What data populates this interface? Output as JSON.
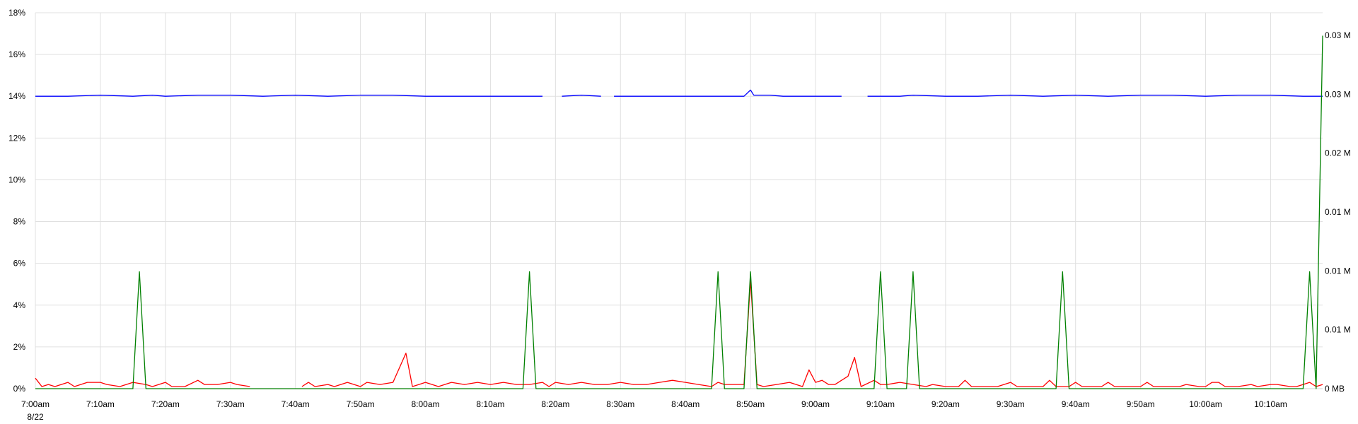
{
  "chart_data": {
    "type": "line",
    "title": "",
    "xlabel": "",
    "ylabel": "",
    "date_label": "8/22",
    "grid": true,
    "legend": "none",
    "x_start": "7:00am",
    "x_end": "10:18am",
    "x_ticks": [
      "7:00am",
      "7:10am",
      "7:20am",
      "7:30am",
      "7:40am",
      "7:50am",
      "8:00am",
      "8:10am",
      "8:20am",
      "8:30am",
      "8:40am",
      "8:50am",
      "9:00am",
      "9:10am",
      "9:20am",
      "9:30am",
      "9:40am",
      "9:50am",
      "10:00am",
      "10:10am"
    ],
    "y_left": {
      "ticks": [
        "0%",
        "2%",
        "4%",
        "6%",
        "8%",
        "10%",
        "12%",
        "14%",
        "16%",
        "18%"
      ],
      "ylim": [
        0,
        18
      ]
    },
    "y_right": {
      "ticks": [
        "0 MB",
        "0.01 M",
        "0.01 M",
        "0.01 M",
        "0.02 M",
        "0.03 M",
        "0.03 M"
      ]
    },
    "series": [
      {
        "color": "#0000ff",
        "axis": "left",
        "points": [
          [
            "7:00am",
            14.0
          ],
          [
            "7:05am",
            14.0
          ],
          [
            "7:10am",
            14.05
          ],
          [
            "7:15am",
            14.0
          ],
          [
            "7:18am",
            14.05
          ],
          [
            "7:20am",
            14.0
          ],
          [
            "7:25am",
            14.05
          ],
          [
            "7:30am",
            14.05
          ],
          [
            "7:35am",
            14.0
          ],
          [
            "7:40am",
            14.05
          ],
          [
            "7:45am",
            14.0
          ],
          [
            "7:50am",
            14.05
          ],
          [
            "7:55am",
            14.05
          ],
          [
            "8:00am",
            14.0
          ],
          [
            "8:05am",
            14.0
          ],
          [
            "8:10am",
            14.0
          ],
          [
            "8:15am",
            14.0
          ],
          [
            "8:18am",
            14.0
          ],
          null,
          [
            "8:21am",
            14.0
          ],
          [
            "8:24am",
            14.05
          ],
          [
            "8:27am",
            14.0
          ],
          null,
          [
            "8:29am",
            14.0
          ],
          [
            "8:35am",
            14.0
          ],
          [
            "8:40am",
            14.0
          ],
          [
            "8:45am",
            14.0
          ],
          [
            "8:49am",
            14.0
          ],
          [
            "8:50am",
            14.3
          ],
          [
            "8:50:30am",
            14.05
          ],
          [
            "8:53am",
            14.05
          ],
          [
            "8:55am",
            14.0
          ],
          [
            "9:00am",
            14.0
          ],
          [
            "9:04am",
            14.0
          ],
          null,
          [
            "9:08am",
            14.0
          ],
          [
            "9:13am",
            14.0
          ],
          [
            "9:15am",
            14.05
          ],
          [
            "9:20am",
            14.0
          ],
          [
            "9:25am",
            14.0
          ],
          [
            "9:30am",
            14.05
          ],
          [
            "9:35am",
            14.0
          ],
          [
            "9:40am",
            14.05
          ],
          [
            "9:45am",
            14.0
          ],
          [
            "9:50am",
            14.05
          ],
          [
            "9:55am",
            14.05
          ],
          [
            "10:00am",
            14.0
          ],
          [
            "10:05am",
            14.05
          ],
          [
            "10:10am",
            14.05
          ],
          [
            "10:15am",
            14.0
          ],
          [
            "10:18am",
            14.0
          ]
        ]
      },
      {
        "color": "#ff0000",
        "axis": "left",
        "points": [
          [
            "7:00am",
            0.5
          ],
          [
            "7:01am",
            0.1
          ],
          [
            "7:02am",
            0.2
          ],
          [
            "7:03am",
            0.1
          ],
          [
            "7:05am",
            0.3
          ],
          [
            "7:06am",
            0.1
          ],
          [
            "7:08am",
            0.3
          ],
          [
            "7:10am",
            0.3
          ],
          [
            "7:11am",
            0.2
          ],
          [
            "7:13am",
            0.1
          ],
          [
            "7:15am",
            0.3
          ],
          [
            "7:17am",
            0.2
          ],
          [
            "7:18am",
            0.1
          ],
          [
            "7:20am",
            0.3
          ],
          [
            "7:21am",
            0.1
          ],
          [
            "7:23am",
            0.1
          ],
          [
            "7:25am",
            0.4
          ],
          [
            "7:26am",
            0.2
          ],
          [
            "7:28am",
            0.2
          ],
          [
            "7:30am",
            0.3
          ],
          [
            "7:31am",
            0.2
          ],
          [
            "7:33am",
            0.1
          ],
          null,
          [
            "7:41am",
            0.1
          ],
          [
            "7:42am",
            0.3
          ],
          [
            "7:43am",
            0.1
          ],
          [
            "7:45am",
            0.2
          ],
          [
            "7:46am",
            0.1
          ],
          [
            "7:48am",
            0.3
          ],
          [
            "7:50am",
            0.1
          ],
          [
            "7:51am",
            0.3
          ],
          [
            "7:53am",
            0.2
          ],
          [
            "7:55am",
            0.3
          ],
          [
            "7:57am",
            1.7
          ],
          [
            "7:58am",
            0.1
          ],
          [
            "7:59am",
            0.2
          ],
          [
            "8:00am",
            0.3
          ],
          [
            "8:02am",
            0.1
          ],
          [
            "8:04am",
            0.3
          ],
          [
            "8:06am",
            0.2
          ],
          [
            "8:08am",
            0.3
          ],
          [
            "8:10am",
            0.2
          ],
          [
            "8:12am",
            0.3
          ],
          [
            "8:14am",
            0.2
          ],
          [
            "8:16am",
            0.2
          ],
          [
            "8:18am",
            0.3
          ],
          [
            "8:19am",
            0.1
          ],
          [
            "8:20am",
            0.3
          ],
          [
            "8:22am",
            0.2
          ],
          [
            "8:24am",
            0.3
          ],
          [
            "8:26am",
            0.2
          ],
          [
            "8:28am",
            0.2
          ],
          [
            "8:30am",
            0.3
          ],
          [
            "8:32am",
            0.2
          ],
          [
            "8:34am",
            0.2
          ],
          [
            "8:36am",
            0.3
          ],
          [
            "8:38am",
            0.4
          ],
          [
            "8:40am",
            0.3
          ],
          [
            "8:42am",
            0.2
          ],
          [
            "8:44am",
            0.1
          ],
          [
            "8:45am",
            0.3
          ],
          [
            "8:46am",
            0.2
          ],
          [
            "8:48am",
            0.2
          ],
          [
            "8:49am",
            0.2
          ],
          [
            "8:50am",
            5.2
          ],
          [
            "8:51am",
            0.2
          ],
          [
            "8:52am",
            0.1
          ],
          [
            "8:54am",
            0.2
          ],
          [
            "8:56am",
            0.3
          ],
          [
            "8:58am",
            0.1
          ],
          [
            "8:59am",
            0.9
          ],
          [
            "9:00am",
            0.3
          ],
          [
            "9:01am",
            0.4
          ],
          [
            "9:02am",
            0.2
          ],
          [
            "9:03am",
            0.2
          ],
          [
            "9:05am",
            0.6
          ],
          [
            "9:06am",
            1.5
          ],
          [
            "9:07am",
            0.1
          ],
          [
            "9:09am",
            0.4
          ],
          [
            "9:10am",
            0.2
          ],
          [
            "9:11am",
            0.2
          ],
          [
            "9:13am",
            0.3
          ],
          [
            "9:15am",
            0.2
          ],
          [
            "9:17am",
            0.1
          ],
          [
            "9:18am",
            0.2
          ],
          [
            "9:20am",
            0.1
          ],
          [
            "9:22am",
            0.1
          ],
          [
            "9:23am",
            0.4
          ],
          [
            "9:24am",
            0.1
          ],
          [
            "9:26am",
            0.1
          ],
          [
            "9:28am",
            0.1
          ],
          [
            "9:30am",
            0.3
          ],
          [
            "9:31am",
            0.1
          ],
          [
            "9:33am",
            0.1
          ],
          [
            "9:35am",
            0.1
          ],
          [
            "9:36am",
            0.4
          ],
          [
            "9:37am",
            0.1
          ],
          [
            "9:39am",
            0.1
          ],
          [
            "9:40am",
            0.3
          ],
          [
            "9:41am",
            0.1
          ],
          [
            "9:43am",
            0.1
          ],
          [
            "9:44am",
            0.1
          ],
          [
            "9:45am",
            0.3
          ],
          [
            "9:46am",
            0.1
          ],
          [
            "9:48am",
            0.1
          ],
          [
            "9:50am",
            0.1
          ],
          [
            "9:51am",
            0.3
          ],
          [
            "9:52am",
            0.1
          ],
          [
            "9:54am",
            0.1
          ],
          [
            "9:56am",
            0.1
          ],
          [
            "9:57am",
            0.2
          ],
          [
            "9:59am",
            0.1
          ],
          [
            "10:00am",
            0.1
          ],
          [
            "10:01am",
            0.3
          ],
          [
            "10:02am",
            0.3
          ],
          [
            "10:03am",
            0.1
          ],
          [
            "10:05am",
            0.1
          ],
          [
            "10:07am",
            0.2
          ],
          [
            "10:08am",
            0.1
          ],
          [
            "10:10am",
            0.2
          ],
          [
            "10:11am",
            0.2
          ],
          [
            "10:13am",
            0.1
          ],
          [
            "10:14am",
            0.1
          ],
          [
            "10:15am",
            0.2
          ],
          [
            "10:16am",
            0.3
          ],
          [
            "10:17am",
            0.1
          ],
          [
            "10:18am",
            0.2
          ]
        ]
      },
      {
        "color": "#008000",
        "axis": "left",
        "points": [
          [
            "7:00am",
            0.0
          ],
          [
            "7:15am",
            0.0
          ],
          [
            "7:16am",
            5.6
          ],
          [
            "7:17am",
            0.0
          ],
          [
            "8:15am",
            0.0
          ],
          [
            "8:16am",
            5.6
          ],
          [
            "8:17am",
            0.0
          ],
          [
            "8:44am",
            0.0
          ],
          [
            "8:45am",
            5.6
          ],
          [
            "8:46am",
            0.0
          ],
          [
            "8:49am",
            0.0
          ],
          [
            "8:50am",
            5.6
          ],
          [
            "8:51am",
            0.0
          ],
          [
            "9:09am",
            0.0
          ],
          [
            "9:10am",
            5.6
          ],
          [
            "9:11am",
            0.0
          ],
          [
            "9:14am",
            0.0
          ],
          [
            "9:15am",
            5.6
          ],
          [
            "9:16am",
            0.0
          ],
          [
            "9:37am",
            0.0
          ],
          [
            "9:38am",
            5.6
          ],
          [
            "9:39am",
            0.0
          ],
          [
            "10:15am",
            0.0
          ],
          [
            "10:16am",
            5.6
          ],
          [
            "10:17am",
            0.0
          ],
          [
            "10:18am",
            16.9
          ]
        ]
      }
    ]
  }
}
